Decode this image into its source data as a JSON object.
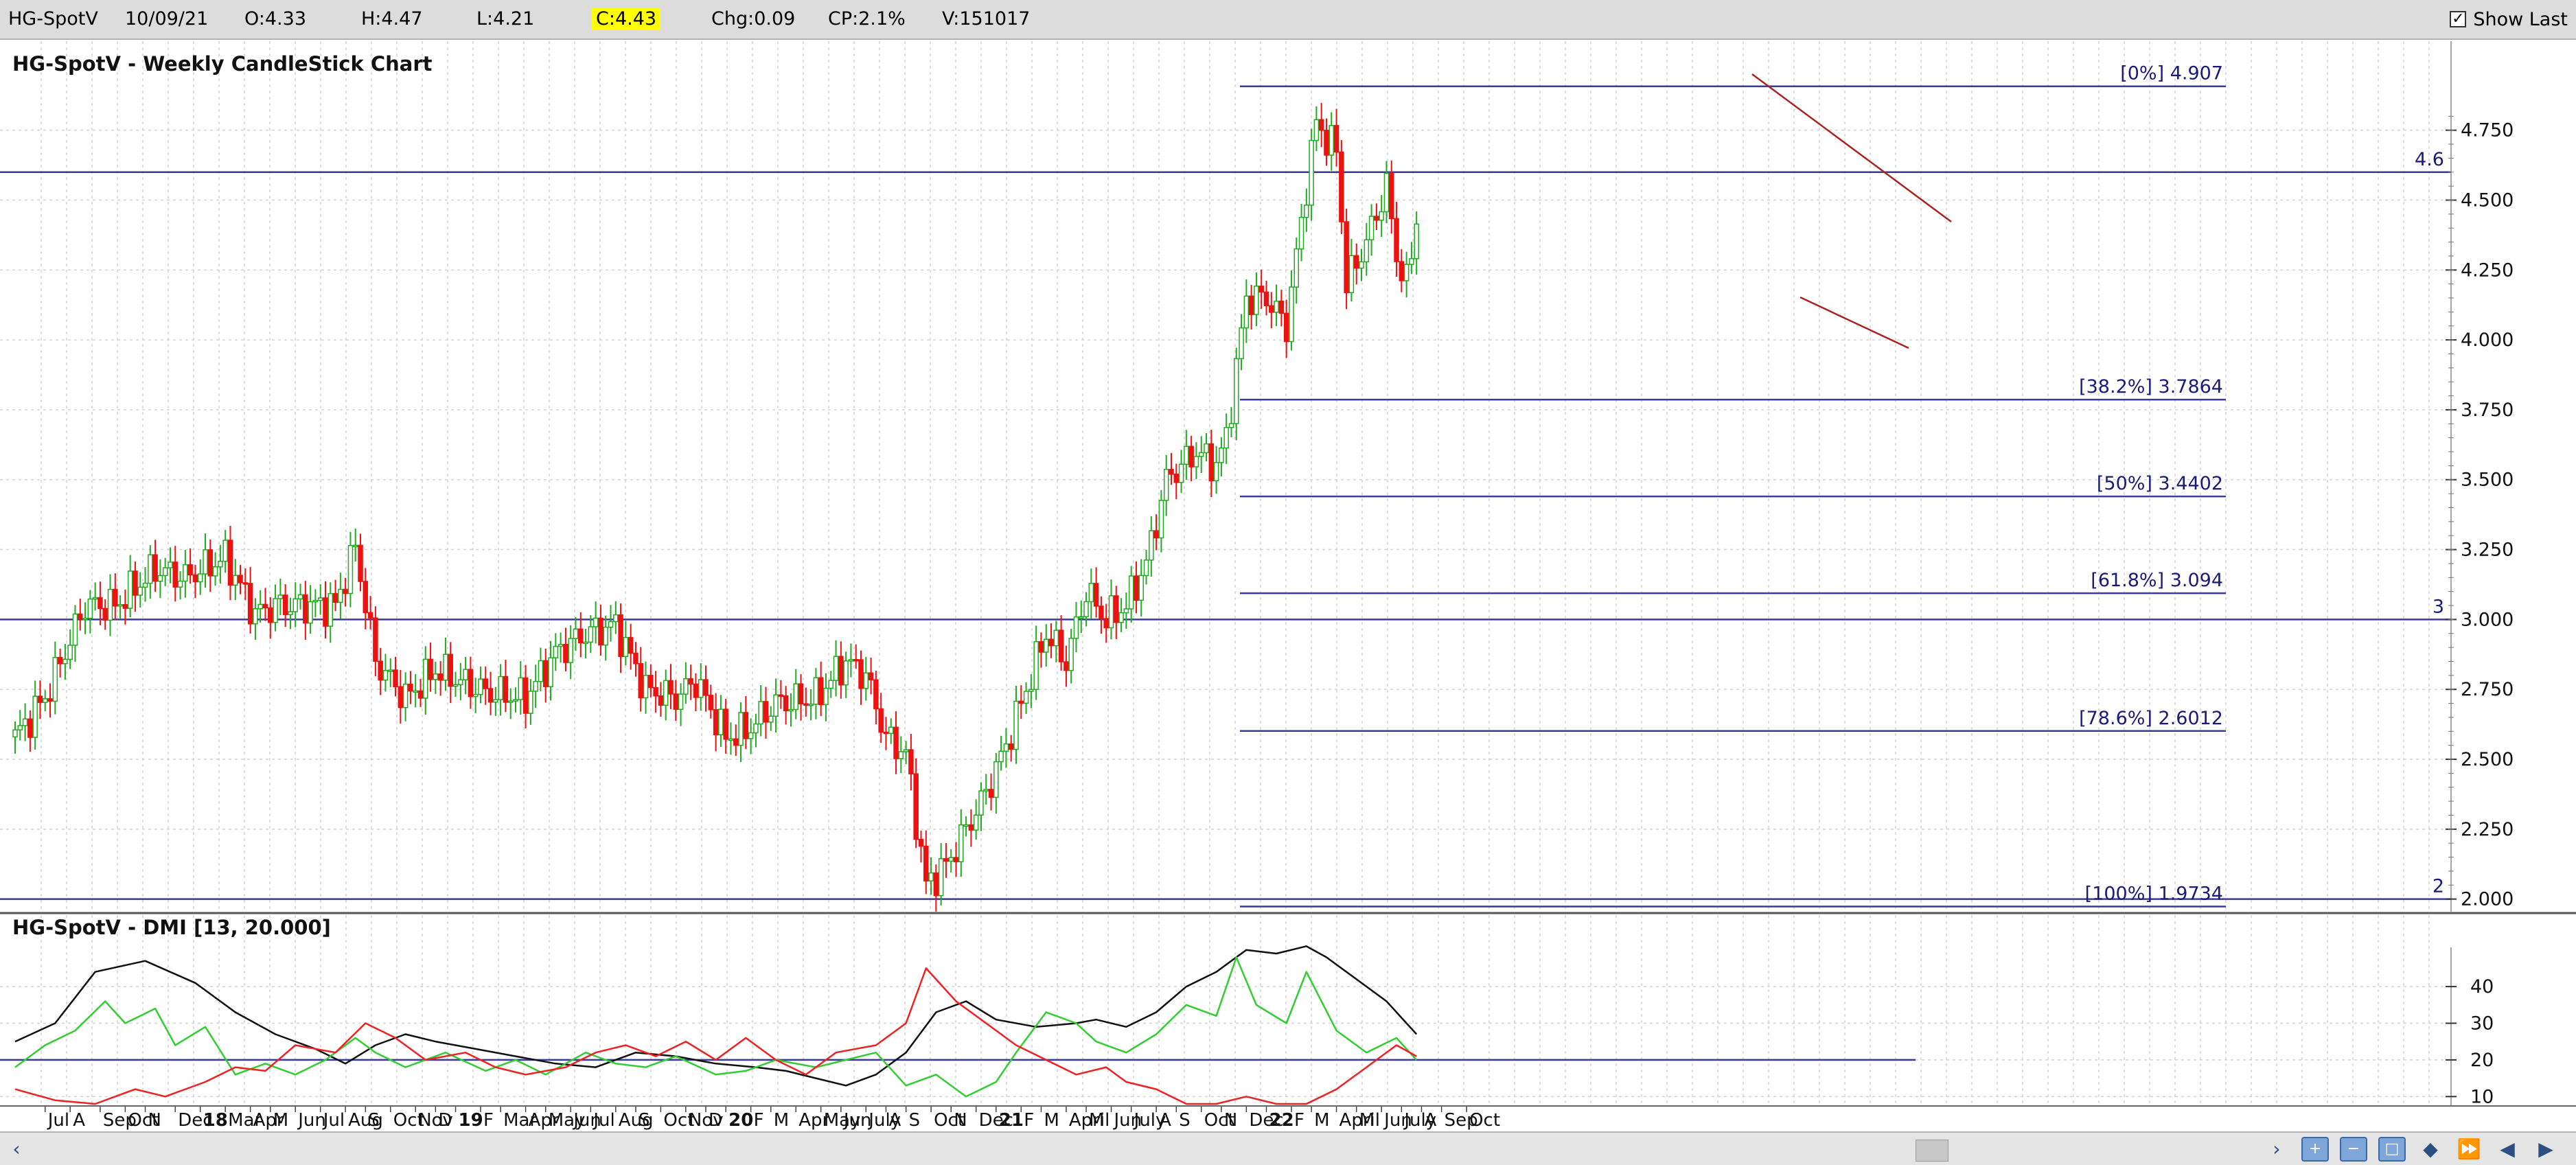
{
  "toolbar": {
    "symbol": "HG-SpotV",
    "date": "10/09/21",
    "open": "O:4.33",
    "high": "H:4.47",
    "low": "L:4.21",
    "close": "C:4.43",
    "change": "Chg:0.09",
    "change_pct": "CP:2.1%",
    "volume": "V:151017",
    "show_last_label": "Show Last",
    "show_last_checked": "✓"
  },
  "colors": {
    "up": "#22aa22",
    "down": "#ee1111",
    "level_line": "#3a3a9a",
    "adx": "#111111",
    "pdi": "#33cc33",
    "mdi": "#ee2222"
  },
  "chart_data": [
    {
      "type": "candlestick",
      "title": "HG-SpotV - Weekly CandleStick Chart",
      "ylim": [
        1.95,
        4.98
      ],
      "yticks": [
        "2.000",
        "2.250",
        "2.500",
        "2.750",
        "3.000",
        "3.250",
        "3.500",
        "3.750",
        "4.000",
        "4.250",
        "4.500",
        "4.750"
      ],
      "grid": true,
      "horizontal_lines": [
        {
          "value": 4.6,
          "label": "4.6"
        },
        {
          "value": 3.0,
          "label": "3"
        },
        {
          "value": 2.0,
          "label": "2"
        }
      ],
      "fibonacci": [
        {
          "value": 4.907,
          "label": "[0%] 4.907"
        },
        {
          "value": 3.7864,
          "label": "[38.2%] 3.7864"
        },
        {
          "value": 3.4402,
          "label": "[50%] 3.4402"
        },
        {
          "value": 3.094,
          "label": "[61.8%] 3.094"
        },
        {
          "value": 2.6012,
          "label": "[78.6%] 2.6012"
        },
        {
          "value": 1.9734,
          "label": "[100%] 1.9734"
        }
      ],
      "waypoints": [
        [
          0,
          2.58
        ],
        [
          6,
          2.72
        ],
        [
          14,
          3.05
        ],
        [
          20,
          3.05
        ],
        [
          28,
          3.18
        ],
        [
          34,
          3.15
        ],
        [
          42,
          3.22
        ],
        [
          48,
          3.02
        ],
        [
          52,
          3.05
        ],
        [
          58,
          3.05
        ],
        [
          64,
          3.05
        ],
        [
          68,
          3.26
        ],
        [
          72,
          2.85
        ],
        [
          78,
          2.72
        ],
        [
          84,
          2.82
        ],
        [
          94,
          2.74
        ],
        [
          102,
          2.72
        ],
        [
          108,
          2.88
        ],
        [
          114,
          2.95
        ],
        [
          120,
          2.98
        ],
        [
          126,
          2.75
        ],
        [
          132,
          2.72
        ],
        [
          136,
          2.78
        ],
        [
          142,
          2.58
        ],
        [
          146,
          2.6
        ],
        [
          152,
          2.7
        ],
        [
          160,
          2.72
        ],
        [
          166,
          2.85
        ],
        [
          170,
          2.8
        ],
        [
          174,
          2.58
        ],
        [
          178,
          2.52
        ],
        [
          182,
          2.05
        ],
        [
          186,
          2.12
        ],
        [
          194,
          2.38
        ],
        [
          198,
          2.55
        ],
        [
          206,
          2.95
        ],
        [
          210,
          2.85
        ],
        [
          214,
          3.1
        ],
        [
          218,
          3.0
        ],
        [
          222,
          3.05
        ],
        [
          226,
          3.2
        ],
        [
          230,
          3.5
        ],
        [
          236,
          3.6
        ],
        [
          240,
          3.55
        ],
        [
          242,
          3.65
        ],
        [
          246,
          4.15
        ],
        [
          250,
          4.15
        ],
        [
          254,
          4.05
        ],
        [
          258,
          4.55
        ],
        [
          260,
          4.78
        ],
        [
          262,
          4.72
        ],
        [
          264,
          4.68
        ],
        [
          266,
          4.2
        ],
        [
          270,
          4.35
        ],
        [
          274,
          4.55
        ],
        [
          276,
          4.3
        ],
        [
          278,
          4.2
        ],
        [
          280,
          4.43
        ]
      ]
    },
    {
      "type": "line",
      "title": "HG-SpotV - DMI [13, 20.000]",
      "ylim": [
        8,
        52
      ],
      "yticks": [
        "10",
        "20",
        "30",
        "40"
      ],
      "threshold": 20,
      "series": [
        {
          "key": "adx",
          "points": [
            [
              0,
              25
            ],
            [
              8,
              30
            ],
            [
              16,
              44
            ],
            [
              26,
              47
            ],
            [
              36,
              41
            ],
            [
              44,
              33
            ],
            [
              52,
              27
            ],
            [
              60,
              23
            ],
            [
              66,
              19
            ],
            [
              72,
              24
            ],
            [
              78,
              27
            ],
            [
              84,
              25
            ],
            [
              92,
              23
            ],
            [
              100,
              21
            ],
            [
              108,
              19
            ],
            [
              116,
              18
            ],
            [
              124,
              22
            ],
            [
              132,
              21
            ],
            [
              140,
              19
            ],
            [
              148,
              18
            ],
            [
              154,
              17
            ],
            [
              160,
              15
            ],
            [
              166,
              13
            ],
            [
              172,
              16
            ],
            [
              178,
              22
            ],
            [
              184,
              33
            ],
            [
              190,
              36
            ],
            [
              196,
              31
            ],
            [
              204,
              29
            ],
            [
              212,
              30
            ],
            [
              216,
              31
            ],
            [
              222,
              29
            ],
            [
              228,
              33
            ],
            [
              234,
              40
            ],
            [
              240,
              44
            ],
            [
              246,
              50
            ],
            [
              252,
              49
            ],
            [
              258,
              51
            ],
            [
              262,
              48
            ],
            [
              268,
              42
            ],
            [
              274,
              36
            ],
            [
              280,
              27
            ]
          ]
        },
        {
          "key": "pdi",
          "points": [
            [
              0,
              18
            ],
            [
              6,
              24
            ],
            [
              12,
              28
            ],
            [
              18,
              36
            ],
            [
              22,
              30
            ],
            [
              28,
              34
            ],
            [
              32,
              24
            ],
            [
              38,
              29
            ],
            [
              44,
              16
            ],
            [
              50,
              19
            ],
            [
              56,
              16
            ],
            [
              62,
              20
            ],
            [
              68,
              26
            ],
            [
              72,
              22
            ],
            [
              78,
              18
            ],
            [
              86,
              22
            ],
            [
              94,
              17
            ],
            [
              100,
              20
            ],
            [
              106,
              16
            ],
            [
              114,
              22
            ],
            [
              120,
              19
            ],
            [
              126,
              18
            ],
            [
              132,
              21
            ],
            [
              140,
              16
            ],
            [
              146,
              17
            ],
            [
              152,
              20
            ],
            [
              160,
              18
            ],
            [
              166,
              20
            ],
            [
              172,
              22
            ],
            [
              178,
              13
            ],
            [
              184,
              16
            ],
            [
              190,
              10
            ],
            [
              196,
              14
            ],
            [
              200,
              22
            ],
            [
              206,
              33
            ],
            [
              212,
              30
            ],
            [
              216,
              25
            ],
            [
              222,
              22
            ],
            [
              228,
              27
            ],
            [
              234,
              35
            ],
            [
              240,
              32
            ],
            [
              244,
              48
            ],
            [
              248,
              35
            ],
            [
              254,
              30
            ],
            [
              258,
              44
            ],
            [
              264,
              28
            ],
            [
              270,
              22
            ],
            [
              276,
              26
            ],
            [
              280,
              20
            ]
          ]
        },
        {
          "key": "mdi",
          "points": [
            [
              0,
              12
            ],
            [
              8,
              9
            ],
            [
              16,
              8
            ],
            [
              24,
              12
            ],
            [
              30,
              10
            ],
            [
              38,
              14
            ],
            [
              44,
              18
            ],
            [
              50,
              17
            ],
            [
              56,
              24
            ],
            [
              64,
              22
            ],
            [
              70,
              30
            ],
            [
              76,
              26
            ],
            [
              82,
              20
            ],
            [
              90,
              22
            ],
            [
              96,
              18
            ],
            [
              102,
              16
            ],
            [
              110,
              18
            ],
            [
              116,
              22
            ],
            [
              122,
              24
            ],
            [
              128,
              21
            ],
            [
              134,
              25
            ],
            [
              140,
              20
            ],
            [
              146,
              26
            ],
            [
              152,
              20
            ],
            [
              158,
              16
            ],
            [
              164,
              22
            ],
            [
              172,
              24
            ],
            [
              178,
              30
            ],
            [
              182,
              45
            ],
            [
              188,
              36
            ],
            [
              194,
              30
            ],
            [
              200,
              24
            ],
            [
              206,
              20
            ],
            [
              212,
              16
            ],
            [
              218,
              18
            ],
            [
              222,
              14
            ],
            [
              228,
              12
            ],
            [
              234,
              8
            ],
            [
              240,
              8
            ],
            [
              246,
              10
            ],
            [
              252,
              8
            ],
            [
              258,
              8
            ],
            [
              264,
              12
            ],
            [
              270,
              18
            ],
            [
              276,
              24
            ],
            [
              280,
              21
            ]
          ]
        }
      ]
    }
  ],
  "x_axis": {
    "ticks": [
      {
        "i": 6,
        "label": "Jul"
      },
      {
        "i": 11,
        "label": "A"
      },
      {
        "i": 17,
        "label": "Sep"
      },
      {
        "i": 22,
        "label": "Oct"
      },
      {
        "i": 26,
        "label": "N"
      },
      {
        "i": 32,
        "label": "Dec"
      },
      {
        "i": 37,
        "label": "18",
        "bold": true
      },
      {
        "i": 42,
        "label": "Mar"
      },
      {
        "i": 47,
        "label": "Apr"
      },
      {
        "i": 51,
        "label": "M"
      },
      {
        "i": 56,
        "label": "Jun"
      },
      {
        "i": 61,
        "label": "Jul"
      },
      {
        "i": 66,
        "label": "Aug"
      },
      {
        "i": 70,
        "label": "S"
      },
      {
        "i": 75,
        "label": "Oct"
      },
      {
        "i": 80,
        "label": "Nov"
      },
      {
        "i": 84,
        "label": "D"
      },
      {
        "i": 88,
        "label": "19",
        "bold": true
      },
      {
        "i": 93,
        "label": "F"
      },
      {
        "i": 97,
        "label": "Mar"
      },
      {
        "i": 102,
        "label": "Apr"
      },
      {
        "i": 106,
        "label": "May"
      },
      {
        "i": 111,
        "label": "Jun"
      },
      {
        "i": 115,
        "label": "Jul"
      },
      {
        "i": 120,
        "label": "Aug"
      },
      {
        "i": 124,
        "label": "S"
      },
      {
        "i": 129,
        "label": "Oct"
      },
      {
        "i": 134,
        "label": "Nov"
      },
      {
        "i": 138,
        "label": "D"
      },
      {
        "i": 142,
        "label": "20",
        "bold": true
      },
      {
        "i": 147,
        "label": "F"
      },
      {
        "i": 151,
        "label": "M"
      },
      {
        "i": 156,
        "label": "Apr"
      },
      {
        "i": 161,
        "label": "May"
      },
      {
        "i": 165,
        "label": "Jun"
      },
      {
        "i": 170,
        "label": "July"
      },
      {
        "i": 174,
        "label": "A"
      },
      {
        "i": 178,
        "label": "S"
      },
      {
        "i": 183,
        "label": "Oct"
      },
      {
        "i": 187,
        "label": "N"
      },
      {
        "i": 192,
        "label": "Dec"
      },
      {
        "i": 196,
        "label": "21",
        "bold": true
      },
      {
        "i": 201,
        "label": "F"
      },
      {
        "i": 205,
        "label": "M"
      },
      {
        "i": 210,
        "label": "April"
      },
      {
        "i": 214,
        "label": "M"
      },
      {
        "i": 219,
        "label": "Jun"
      },
      {
        "i": 223,
        "label": "July"
      },
      {
        "i": 228,
        "label": "A"
      },
      {
        "i": 232,
        "label": "S"
      },
      {
        "i": 237,
        "label": "Oct"
      },
      {
        "i": 241,
        "label": "N"
      },
      {
        "i": 246,
        "label": "Dec"
      },
      {
        "i": 250,
        "label": "22",
        "bold": true
      },
      {
        "i": 255,
        "label": "F"
      },
      {
        "i": 259,
        "label": "M"
      },
      {
        "i": 264,
        "label": "April"
      },
      {
        "i": 268,
        "label": "M"
      },
      {
        "i": 273,
        "label": "Jun"
      },
      {
        "i": 277,
        "label": "July"
      },
      {
        "i": 281,
        "label": "A"
      },
      {
        "i": 285,
        "label": "Sep"
      },
      {
        "i": 290,
        "label": "Oct"
      }
    ]
  }
}
